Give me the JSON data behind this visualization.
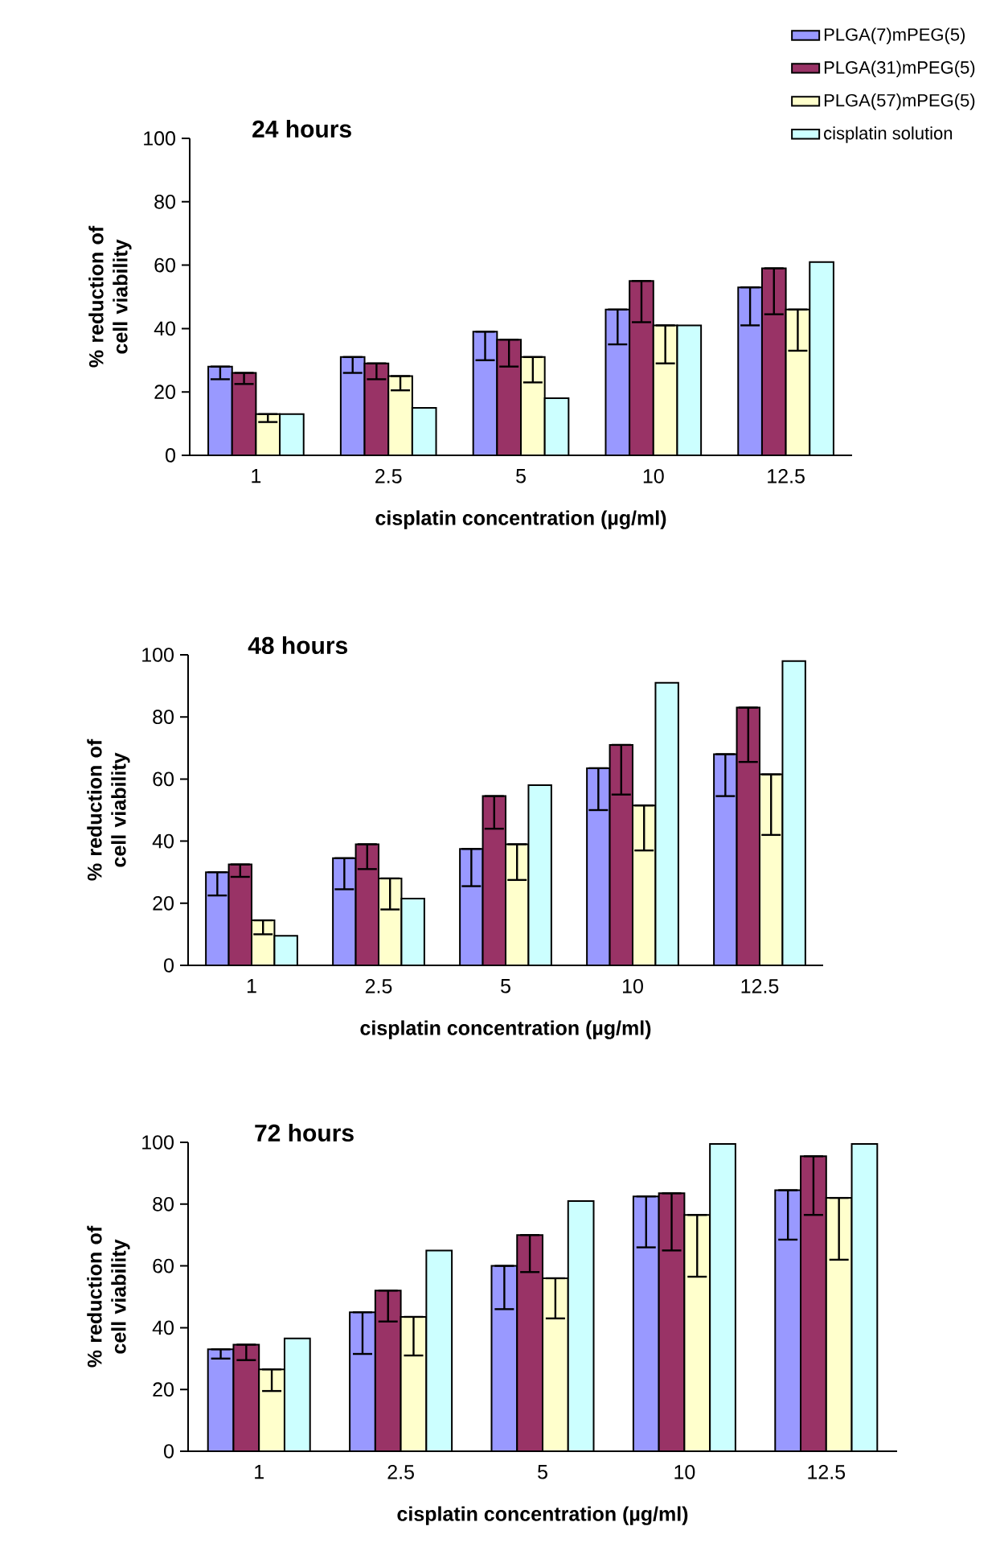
{
  "chart_data": [
    {
      "type": "bar",
      "title": "24 hours",
      "xlabel": "cisplatin concentration (µg/ml)",
      "ylabel": "% reduction of cell viability",
      "categories": [
        "1",
        "2.5",
        "5",
        "10",
        "12.5"
      ],
      "ylim": [
        0,
        100
      ],
      "yticks": [
        0,
        20,
        40,
        60,
        80,
        100
      ],
      "legend": "top right",
      "series": [
        {
          "name": "PLGA(7)mPEG(5)",
          "color": "#9999ff",
          "values": [
            28,
            31,
            39,
            46,
            53
          ],
          "errors": [
            [
              24,
              28
            ],
            [
              26,
              31
            ],
            [
              30,
              39
            ],
            [
              35,
              46
            ],
            [
              41,
              53
            ]
          ]
        },
        {
          "name": "PLGA(31)mPEG(5)",
          "color": "#993366",
          "values": [
            26,
            29,
            36.5,
            55,
            59
          ],
          "errors": [
            [
              22.5,
              26
            ],
            [
              24,
              29
            ],
            [
              28,
              36.5
            ],
            [
              42,
              55
            ],
            [
              44.5,
              59
            ]
          ]
        },
        {
          "name": "PLGA(57)mPEG(5)",
          "color": "#ffffcc",
          "values": [
            13,
            25,
            31,
            41,
            46
          ],
          "errors": [
            [
              10.5,
              13
            ],
            [
              20.5,
              25
            ],
            [
              23,
              31
            ],
            [
              29,
              41
            ],
            [
              33,
              46
            ]
          ]
        },
        {
          "name": "cisplatin solution",
          "color": "#ccffff",
          "values": [
            13,
            15,
            18,
            41,
            61
          ]
        }
      ]
    },
    {
      "type": "bar",
      "title": "48 hours",
      "xlabel": "cisplatin concentration (µg/ml)",
      "ylabel": "% reduction of cell viability",
      "categories": [
        "1",
        "2.5",
        "5",
        "10",
        "12.5"
      ],
      "ylim": [
        0,
        100
      ],
      "yticks": [
        0,
        20,
        40,
        60,
        80,
        100
      ],
      "series": [
        {
          "color": "#9999ff",
          "values": [
            30,
            34.5,
            37.5,
            63.5,
            68
          ],
          "errors": [
            [
              22.5,
              30
            ],
            [
              24.5,
              34.5
            ],
            [
              25.5,
              37.5
            ],
            [
              50,
              63.5
            ],
            [
              54.5,
              68
            ]
          ]
        },
        {
          "color": "#993366",
          "values": [
            32.5,
            39,
            54.5,
            71,
            83
          ],
          "errors": [
            [
              28.5,
              32.5
            ],
            [
              31,
              39
            ],
            [
              44,
              54.5
            ],
            [
              55,
              71
            ],
            [
              65.5,
              83
            ]
          ]
        },
        {
          "color": "#ffffcc",
          "values": [
            14.5,
            28,
            39,
            51.5,
            61.5
          ],
          "errors": [
            [
              10,
              14.5
            ],
            [
              18,
              28
            ],
            [
              27.5,
              39
            ],
            [
              37,
              51.5
            ],
            [
              42,
              61.5
            ]
          ]
        },
        {
          "color": "#ccffff",
          "values": [
            9.5,
            21.5,
            58,
            91,
            98
          ]
        }
      ]
    },
    {
      "type": "bar",
      "title": "72 hours",
      "xlabel": "cisplatin concentration (µg/ml)",
      "ylabel": "% reduction of cell viability",
      "categories": [
        "1",
        "2.5",
        "5",
        "10",
        "12.5"
      ],
      "ylim": [
        0,
        100
      ],
      "yticks": [
        0,
        20,
        40,
        60,
        80,
        100
      ],
      "series": [
        {
          "color": "#9999ff",
          "values": [
            33,
            45,
            60,
            82.5,
            84.5
          ],
          "errors": [
            [
              30,
              33
            ],
            [
              31.5,
              45
            ],
            [
              46,
              60
            ],
            [
              66,
              82.5
            ],
            [
              68.5,
              84.5
            ]
          ]
        },
        {
          "color": "#993366",
          "values": [
            34.5,
            52,
            70,
            83.5,
            95.5
          ],
          "errors": [
            [
              29.5,
              34.5
            ],
            [
              42,
              52
            ],
            [
              58,
              70
            ],
            [
              65,
              83.5
            ],
            [
              76.5,
              95.5
            ]
          ]
        },
        {
          "color": "#ffffcc",
          "values": [
            26.5,
            43.5,
            56,
            76.5,
            82
          ],
          "errors": [
            [
              19.5,
              26.5
            ],
            [
              31,
              43.5
            ],
            [
              43,
              56
            ],
            [
              56.5,
              76.5
            ],
            [
              62,
              82
            ]
          ]
        },
        {
          "color": "#ccffff",
          "values": [
            36.5,
            65,
            81,
            99.5,
            99.5
          ]
        }
      ]
    }
  ]
}
